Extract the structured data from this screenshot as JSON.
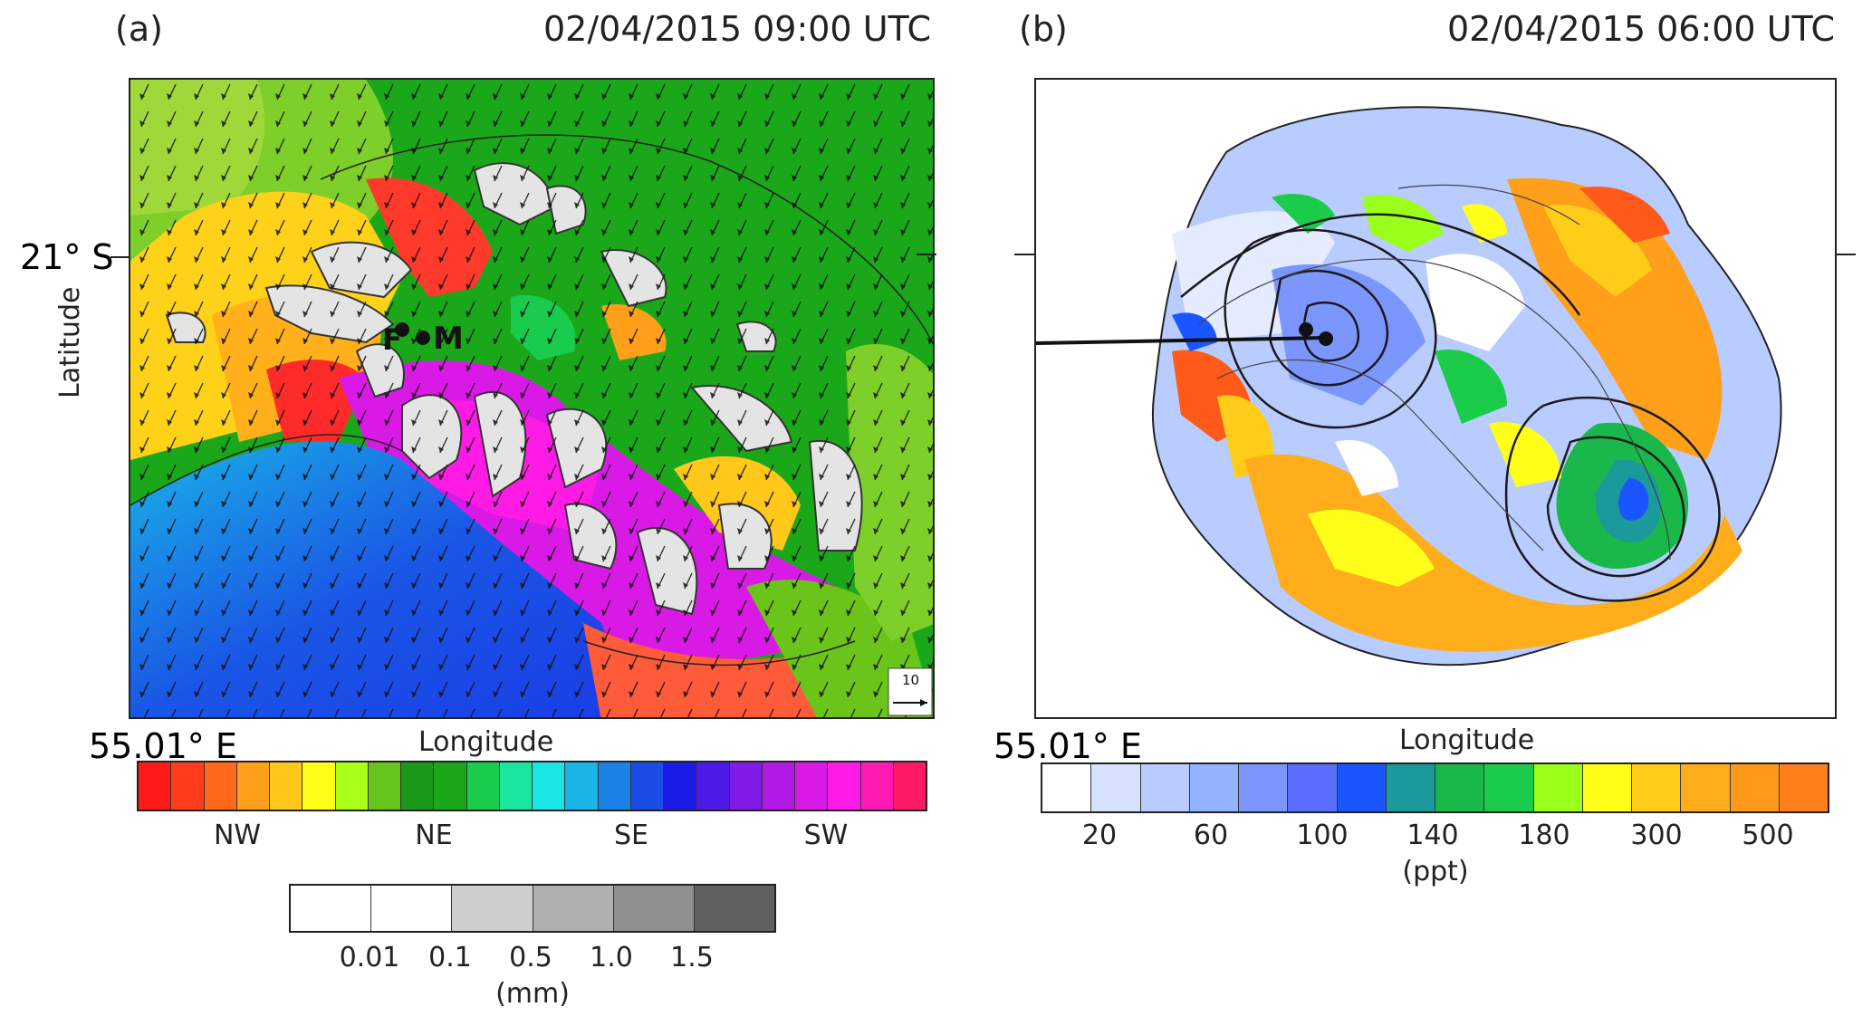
{
  "panel_a": {
    "label": "(a)",
    "timestamp": "02/04/2015 09:00 UTC",
    "lat_label": "21° S",
    "lon_label": "55.01° E",
    "xlabel": "Longitude",
    "ylabel": "Latitude",
    "station_labels": [
      "F",
      "M"
    ],
    "wind_ref": "10",
    "wind_colorbar": {
      "colors": [
        "#ff1a1a",
        "#ff3d1a",
        "#ff6a1a",
        "#ff9f1a",
        "#ffc81a",
        "#ffff1a",
        "#a8ff1a",
        "#66c41a",
        "#1a9a1a",
        "#1aa81a",
        "#1acc4d",
        "#1ae6a0",
        "#1ae6e6",
        "#1ab4e6",
        "#1a82e6",
        "#1a4de6",
        "#1a1ae6",
        "#4d1ae6",
        "#801ae6",
        "#b31ae6",
        "#d91ae6",
        "#ff1ae6",
        "#ff1ab4",
        "#ff1a66"
      ],
      "labels": [
        "NW",
        "NE",
        "SE",
        "SW"
      ]
    },
    "rain_colorbar": {
      "colors": [
        "#ffffff",
        "#ffffff",
        "#cfcfcf",
        "#b0b0b0",
        "#8f8f8f",
        "#606060"
      ],
      "labels": [
        "0.01",
        "0.1",
        "0.5",
        "1.0",
        "1.5"
      ],
      "unit": "(mm)"
    }
  },
  "panel_b": {
    "label": "(b)",
    "timestamp": "02/04/2015 06:00 UTC",
    "lon_label": "55.01° E",
    "xlabel": "Longitude",
    "colorbar": {
      "colors": [
        "#ffffff",
        "#d6e2ff",
        "#b8ccff",
        "#92b3ff",
        "#7c96ff",
        "#5a6fff",
        "#1a56ff",
        "#1a9a9a",
        "#1ab84a",
        "#1acc4a",
        "#9aff1a",
        "#ffff1a",
        "#ffcc1a",
        "#ffad1a",
        "#ff991a",
        "#ff801a"
      ],
      "labels": [
        "20",
        "60",
        "100",
        "140",
        "180",
        "300",
        "500"
      ],
      "unit": "(ppt)"
    }
  }
}
